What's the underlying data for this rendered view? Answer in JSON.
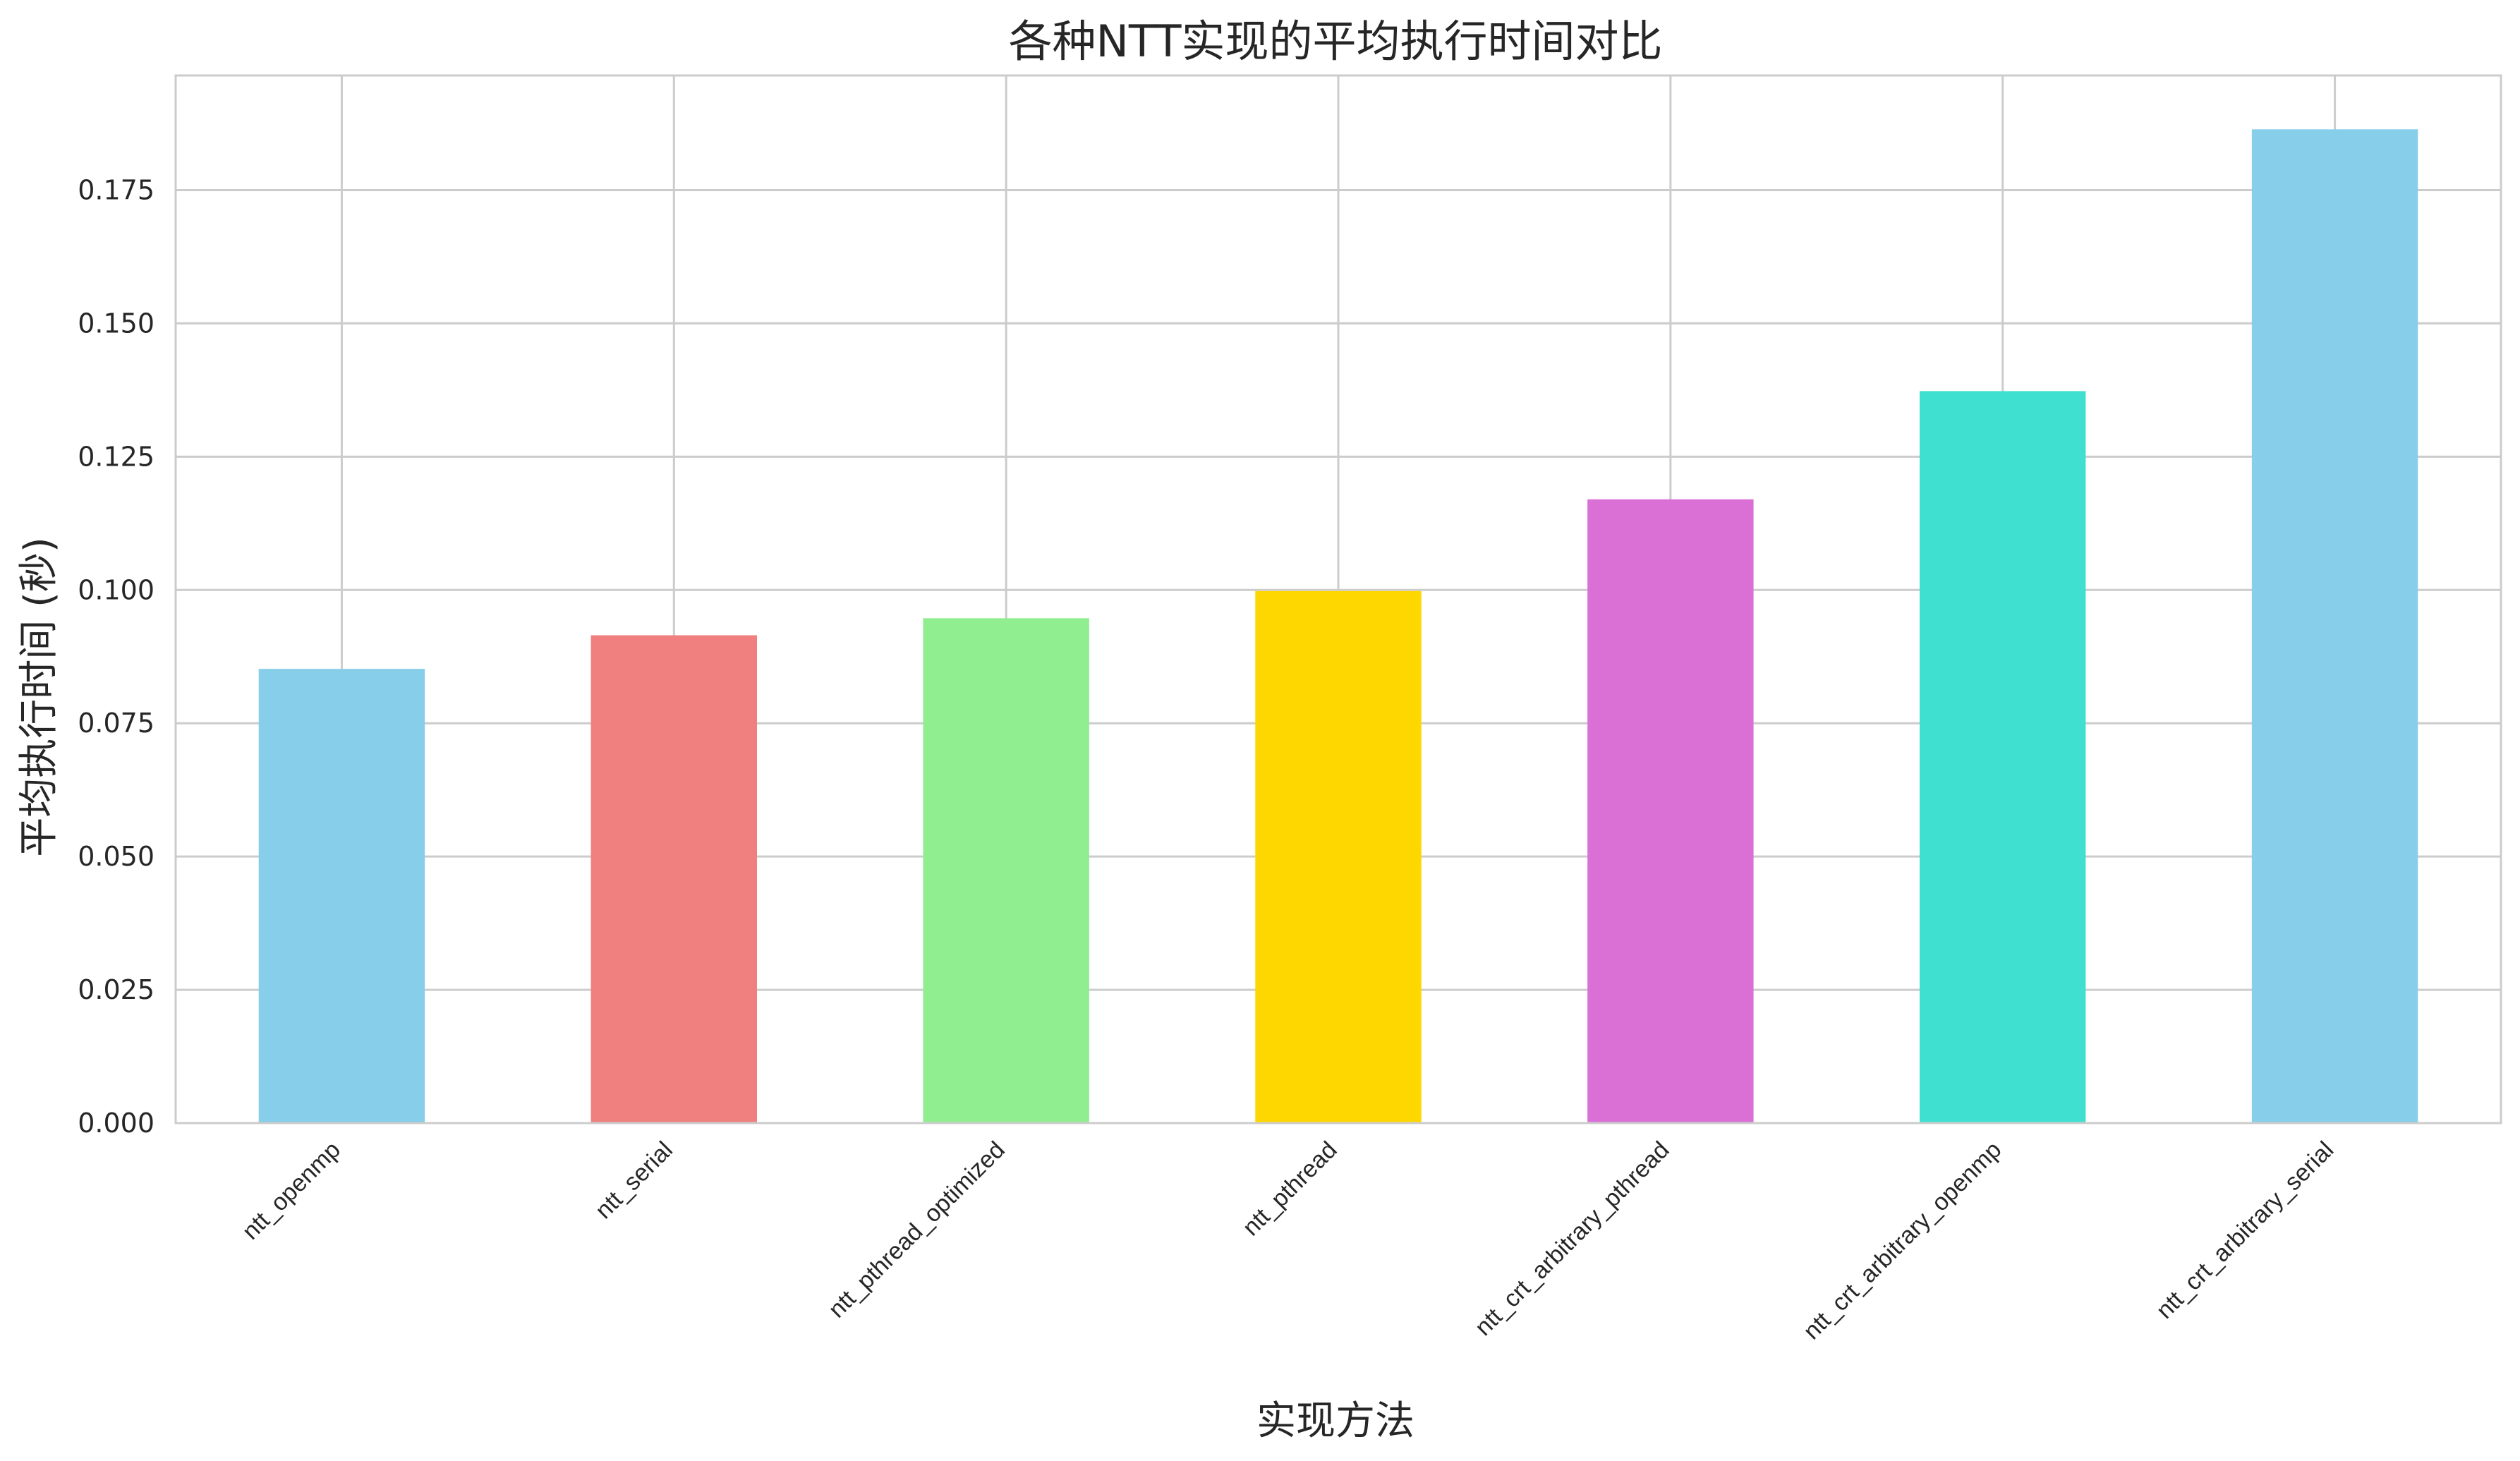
{
  "chart_data": {
    "type": "bar",
    "title": "各种NTT实现的平均执行时间对比",
    "xlabel": "实现方法",
    "ylabel": "平均执行时间 (秒)",
    "categories": [
      "ntt_openmp",
      "ntt_serial",
      "ntt_pthread_optimized",
      "ntt_pthread",
      "ntt_crt_arbitrary_pthread",
      "ntt_crt_arbitrary_openmp",
      "ntt_crt_arbitrary_serial"
    ],
    "values": [
      0.0852,
      0.0915,
      0.0947,
      0.0998,
      0.117,
      0.1373,
      0.1864
    ],
    "colors": [
      "#87CEEB",
      "#F08080",
      "#90EE90",
      "#FFD700",
      "#DA70D6",
      "#40E0D0",
      "#87CEEB"
    ],
    "ylim": [
      0,
      0.1965
    ],
    "yticks": [
      0.0,
      0.025,
      0.05,
      0.075,
      0.1,
      0.125,
      0.15,
      0.175
    ],
    "ytick_labels": [
      "0.000",
      "0.025",
      "0.050",
      "0.075",
      "0.100",
      "0.125",
      "0.150",
      "0.175"
    ],
    "grid": true,
    "legend": "none",
    "grid_color": "#cccccc"
  }
}
